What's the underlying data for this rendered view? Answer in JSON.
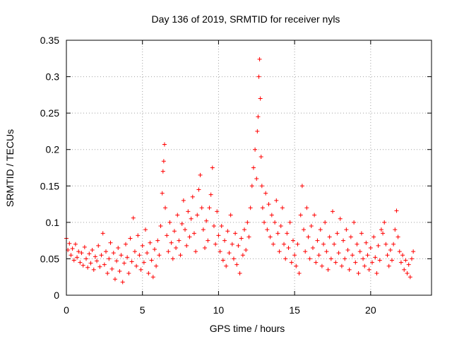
{
  "chart_data": {
    "type": "scatter",
    "title": "Day 136 of 2019, SRMTID for receiver nyls",
    "xlabel": "GPS time / hours",
    "ylabel": "SRMTID / TECUs",
    "xlim": [
      0,
      24
    ],
    "ylim": [
      0,
      0.35
    ],
    "xticks": [
      0,
      5,
      10,
      15,
      20
    ],
    "xtick_labels": [
      "0",
      "5",
      "10",
      "15",
      "20"
    ],
    "yticks": [
      0,
      0.05,
      0.1,
      0.15,
      0.2,
      0.25,
      0.3,
      0.35
    ],
    "ytick_labels": [
      "0",
      "0.05",
      "0.1",
      "0.15",
      "0.2",
      "0.25",
      "0.3",
      "0.35"
    ],
    "grid": true,
    "marker": "+",
    "color": "#ff0000",
    "series": [
      {
        "name": "SRMTID",
        "points": [
          [
            0.0,
            0.078
          ],
          [
            0.1,
            0.062
          ],
          [
            0.2,
            0.071
          ],
          [
            0.3,
            0.055
          ],
          [
            0.4,
            0.064
          ],
          [
            0.5,
            0.048
          ],
          [
            0.6,
            0.07
          ],
          [
            0.7,
            0.052
          ],
          [
            0.8,
            0.06
          ],
          [
            0.9,
            0.045
          ],
          [
            1.0,
            0.058
          ],
          [
            1.1,
            0.041
          ],
          [
            1.2,
            0.066
          ],
          [
            1.3,
            0.05
          ],
          [
            1.4,
            0.038
          ],
          [
            1.5,
            0.057
          ],
          [
            1.6,
            0.044
          ],
          [
            1.7,
            0.062
          ],
          [
            1.8,
            0.035
          ],
          [
            1.9,
            0.053
          ],
          [
            2.0,
            0.047
          ],
          [
            2.1,
            0.068
          ],
          [
            2.2,
            0.039
          ],
          [
            2.3,
            0.055
          ],
          [
            2.4,
            0.085
          ],
          [
            2.5,
            0.042
          ],
          [
            2.6,
            0.06
          ],
          [
            2.7,
            0.03
          ],
          [
            2.8,
            0.05
          ],
          [
            2.9,
            0.072
          ],
          [
            3.0,
            0.036
          ],
          [
            3.1,
            0.058
          ],
          [
            3.2,
            0.022
          ],
          [
            3.3,
            0.047
          ],
          [
            3.4,
            0.065
          ],
          [
            3.5,
            0.033
          ],
          [
            3.6,
            0.055
          ],
          [
            3.7,
            0.018
          ],
          [
            3.8,
            0.044
          ],
          [
            3.9,
            0.07
          ],
          [
            4.0,
            0.052
          ],
          [
            4.1,
            0.03
          ],
          [
            4.2,
            0.078
          ],
          [
            4.3,
            0.046
          ],
          [
            4.4,
            0.106
          ],
          [
            4.5,
            0.06
          ],
          [
            4.6,
            0.04
          ],
          [
            4.7,
            0.082
          ],
          [
            4.8,
            0.055
          ],
          [
            4.9,
            0.035
          ],
          [
            5.0,
            0.068
          ],
          [
            5.1,
            0.045
          ],
          [
            5.2,
            0.09
          ],
          [
            5.3,
            0.058
          ],
          [
            5.4,
            0.03
          ],
          [
            5.5,
            0.072
          ],
          [
            5.6,
            0.048
          ],
          [
            5.7,
            0.025
          ],
          [
            5.8,
            0.063
          ],
          [
            5.9,
            0.04
          ],
          [
            6.0,
            0.075
          ],
          [
            6.1,
            0.055
          ],
          [
            6.2,
            0.095
          ],
          [
            6.3,
            0.14
          ],
          [
            6.35,
            0.17
          ],
          [
            6.4,
            0.184
          ],
          [
            6.45,
            0.207
          ],
          [
            6.5,
            0.12
          ],
          [
            6.6,
            0.082
          ],
          [
            6.7,
            0.06
          ],
          [
            6.8,
            0.1
          ],
          [
            6.9,
            0.072
          ],
          [
            7.0,
            0.05
          ],
          [
            7.1,
            0.088
          ],
          [
            7.2,
            0.065
          ],
          [
            7.3,
            0.11
          ],
          [
            7.4,
            0.075
          ],
          [
            7.5,
            0.055
          ],
          [
            7.6,
            0.098
          ],
          [
            7.7,
            0.13
          ],
          [
            7.8,
            0.09
          ],
          [
            7.9,
            0.068
          ],
          [
            8.0,
            0.115
          ],
          [
            8.1,
            0.08
          ],
          [
            8.2,
            0.105
          ],
          [
            8.3,
            0.135
          ],
          [
            8.4,
            0.085
          ],
          [
            8.5,
            0.06
          ],
          [
            8.6,
            0.11
          ],
          [
            8.7,
            0.145
          ],
          [
            8.8,
            0.165
          ],
          [
            8.9,
            0.12
          ],
          [
            9.0,
            0.09
          ],
          [
            9.1,
            0.065
          ],
          [
            9.2,
            0.102
          ],
          [
            9.3,
            0.075
          ],
          [
            9.4,
            0.12
          ],
          [
            9.5,
            0.138
          ],
          [
            9.6,
            0.175
          ],
          [
            9.7,
            0.095
          ],
          [
            9.8,
            0.07
          ],
          [
            9.9,
            0.115
          ],
          [
            10.0,
            0.082
          ],
          [
            10.1,
            0.06
          ],
          [
            10.2,
            0.095
          ],
          [
            10.3,
            0.048
          ],
          [
            10.4,
            0.075
          ],
          [
            10.5,
            0.04
          ],
          [
            10.6,
            0.088
          ],
          [
            10.7,
            0.058
          ],
          [
            10.8,
            0.11
          ],
          [
            10.9,
            0.07
          ],
          [
            11.0,
            0.05
          ],
          [
            11.1,
            0.085
          ],
          [
            11.2,
            0.042
          ],
          [
            11.3,
            0.068
          ],
          [
            11.4,
            0.03
          ],
          [
            11.5,
            0.078
          ],
          [
            11.6,
            0.055
          ],
          [
            11.7,
            0.09
          ],
          [
            11.8,
            0.062
          ],
          [
            11.9,
            0.1
          ],
          [
            12.0,
            0.08
          ],
          [
            12.1,
            0.12
          ],
          [
            12.2,
            0.15
          ],
          [
            12.3,
            0.175
          ],
          [
            12.4,
            0.2
          ],
          [
            12.5,
            0.16
          ],
          [
            12.55,
            0.225
          ],
          [
            12.6,
            0.245
          ],
          [
            12.65,
            0.3
          ],
          [
            12.7,
            0.324
          ],
          [
            12.75,
            0.27
          ],
          [
            12.8,
            0.19
          ],
          [
            12.85,
            0.15
          ],
          [
            12.9,
            0.12
          ],
          [
            13.0,
            0.1
          ],
          [
            13.1,
            0.14
          ],
          [
            13.2,
            0.09
          ],
          [
            13.3,
            0.125
          ],
          [
            13.4,
            0.08
          ],
          [
            13.5,
            0.11
          ],
          [
            13.6,
            0.07
          ],
          [
            13.7,
            0.1
          ],
          [
            13.8,
            0.13
          ],
          [
            13.9,
            0.085
          ],
          [
            14.0,
            0.06
          ],
          [
            14.1,
            0.095
          ],
          [
            14.2,
            0.12
          ],
          [
            14.3,
            0.07
          ],
          [
            14.4,
            0.05
          ],
          [
            14.5,
            0.085
          ],
          [
            14.6,
            0.065
          ],
          [
            14.7,
            0.1
          ],
          [
            14.8,
            0.045
          ],
          [
            14.9,
            0.075
          ],
          [
            15.0,
            0.055
          ],
          [
            15.1,
            0.04
          ],
          [
            15.2,
            0.07
          ],
          [
            15.3,
            0.03
          ],
          [
            15.4,
            0.11
          ],
          [
            15.5,
            0.15
          ],
          [
            15.6,
            0.09
          ],
          [
            15.7,
            0.06
          ],
          [
            15.8,
            0.12
          ],
          [
            15.9,
            0.08
          ],
          [
            16.0,
            0.05
          ],
          [
            16.1,
            0.095
          ],
          [
            16.2,
            0.065
          ],
          [
            16.3,
            0.11
          ],
          [
            16.4,
            0.045
          ],
          [
            16.5,
            0.075
          ],
          [
            16.6,
            0.055
          ],
          [
            16.7,
            0.09
          ],
          [
            16.8,
            0.04
          ],
          [
            16.9,
            0.07
          ],
          [
            17.0,
            0.1
          ],
          [
            17.1,
            0.06
          ],
          [
            17.2,
            0.035
          ],
          [
            17.3,
            0.08
          ],
          [
            17.4,
            0.05
          ],
          [
            17.5,
            0.115
          ],
          [
            17.6,
            0.07
          ],
          [
            17.7,
            0.045
          ],
          [
            17.8,
            0.085
          ],
          [
            17.9,
            0.058
          ],
          [
            18.0,
            0.105
          ],
          [
            18.1,
            0.04
          ],
          [
            18.2,
            0.075
          ],
          [
            18.3,
            0.05
          ],
          [
            18.4,
            0.09
          ],
          [
            18.5,
            0.062
          ],
          [
            18.6,
            0.035
          ],
          [
            18.7,
            0.08
          ],
          [
            18.8,
            0.055
          ],
          [
            18.9,
            0.1
          ],
          [
            19.0,
            0.045
          ],
          [
            19.1,
            0.07
          ],
          [
            19.2,
            0.03
          ],
          [
            19.3,
            0.06
          ],
          [
            19.4,
            0.085
          ],
          [
            19.5,
            0.05
          ],
          [
            19.6,
            0.04
          ],
          [
            19.7,
            0.072
          ],
          [
            19.8,
            0.055
          ],
          [
            19.9,
            0.035
          ],
          [
            20.0,
            0.065
          ],
          [
            20.1,
            0.045
          ],
          [
            20.2,
            0.08
          ],
          [
            20.3,
            0.052
          ],
          [
            20.4,
            0.03
          ],
          [
            20.5,
            0.068
          ],
          [
            20.6,
            0.048
          ],
          [
            20.7,
            0.09
          ],
          [
            20.8,
            0.085
          ],
          [
            20.9,
            0.1
          ],
          [
            21.0,
            0.07
          ],
          [
            21.1,
            0.055
          ],
          [
            21.2,
            0.04
          ],
          [
            21.3,
            0.062
          ],
          [
            21.4,
            0.048
          ],
          [
            21.5,
            0.07
          ],
          [
            21.6,
            0.09
          ],
          [
            21.7,
            0.116
          ],
          [
            21.8,
            0.08
          ],
          [
            21.9,
            0.06
          ],
          [
            22.0,
            0.045
          ],
          [
            22.1,
            0.055
          ],
          [
            22.2,
            0.035
          ],
          [
            22.3,
            0.048
          ],
          [
            22.4,
            0.03
          ],
          [
            22.5,
            0.042
          ],
          [
            22.6,
            0.025
          ],
          [
            22.7,
            0.05
          ],
          [
            22.8,
            0.06
          ]
        ]
      }
    ]
  }
}
